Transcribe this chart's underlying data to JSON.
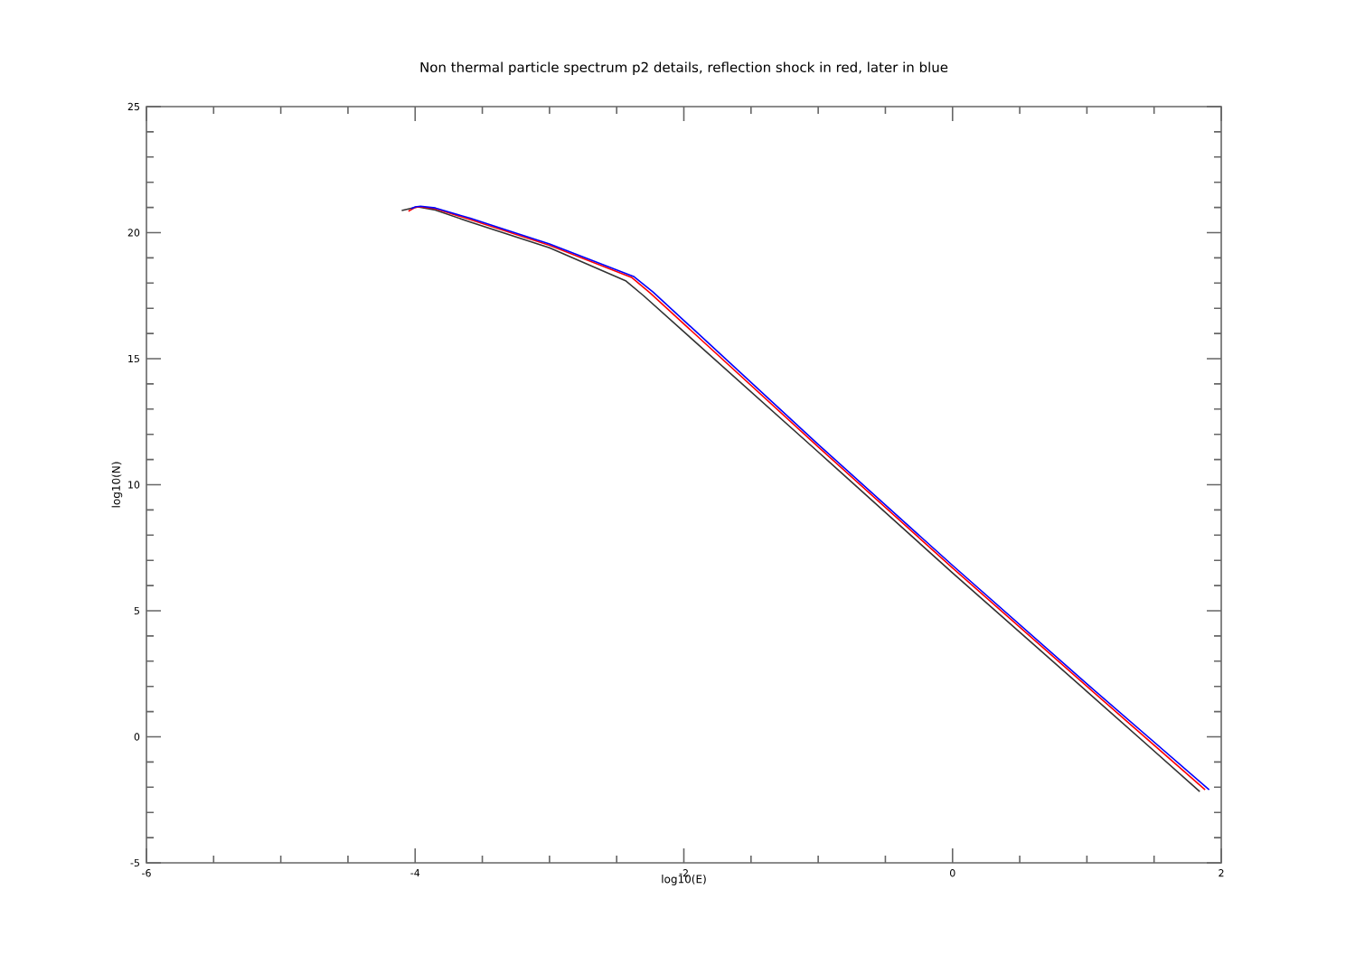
{
  "chart_data": {
    "type": "line",
    "title": "Non thermal particle spectrum p2 details, reflection shock in red, later in blue",
    "xlabel": "log10(E)",
    "ylabel": "log10(N)",
    "xlim": [
      -6,
      2
    ],
    "ylim": [
      -5,
      25
    ],
    "xticks": [
      -6,
      {
        "value": -5.5,
        "label": null
      },
      {
        "value": -5,
        "label": null
      },
      {
        "value": -4.5,
        "label": null
      },
      -4,
      {
        "value": -3.5,
        "label": null
      },
      {
        "value": -3,
        "label": null
      },
      {
        "value": -2.5,
        "label": null
      },
      -2,
      {
        "value": -1.5,
        "label": null
      },
      {
        "value": -1,
        "label": null
      },
      {
        "value": -0.5,
        "label": null
      },
      0,
      {
        "value": 0.5,
        "label": null
      },
      {
        "value": 1,
        "label": null
      },
      {
        "value": 1.5,
        "label": null
      },
      2
    ],
    "yticks": [
      -5,
      {
        "value": -4,
        "label": null
      },
      {
        "value": -3,
        "label": null
      },
      {
        "value": -2,
        "label": null
      },
      {
        "value": -1,
        "label": null
      },
      0,
      {
        "value": 1,
        "label": null
      },
      {
        "value": 2,
        "label": null
      },
      {
        "value": 3,
        "label": null
      },
      {
        "value": 4,
        "label": null
      },
      5,
      {
        "value": 6,
        "label": null
      },
      {
        "value": 7,
        "label": null
      },
      {
        "value": 8,
        "label": null
      },
      {
        "value": 9,
        "label": null
      },
      10,
      {
        "value": 11,
        "label": null
      },
      {
        "value": 12,
        "label": null
      },
      {
        "value": 13,
        "label": null
      },
      {
        "value": 14,
        "label": null
      },
      15,
      {
        "value": 16,
        "label": null
      },
      {
        "value": 17,
        "label": null
      },
      {
        "value": 18,
        "label": null
      },
      {
        "value": 19,
        "label": null
      },
      20,
      {
        "value": 21,
        "label": null
      },
      {
        "value": 22,
        "label": null
      },
      {
        "value": 23,
        "label": null
      },
      {
        "value": 24,
        "label": null
      },
      25
    ],
    "grid": false,
    "series": [
      {
        "color": "#333333",
        "x": [
          -4.1,
          -4.02,
          -3.98,
          -3.85,
          -3.59,
          -3.0,
          -2.43,
          -2.3,
          -1.0,
          0.0,
          1.0,
          1.84
        ],
        "values": [
          20.88,
          20.98,
          21.02,
          20.9,
          20.42,
          19.4,
          18.08,
          17.5,
          11.3,
          6.5,
          1.8,
          -2.17
        ]
      },
      {
        "color": "#ff0000",
        "x": [
          -4.05,
          -4.0,
          -3.97,
          -3.85,
          -3.59,
          -3.0,
          -2.39,
          -2.25,
          -1.0,
          0.0,
          1.0,
          1.88
        ],
        "values": [
          20.85,
          21.0,
          21.03,
          20.95,
          20.52,
          19.5,
          18.23,
          17.6,
          11.5,
          6.7,
          2.0,
          -2.1
        ]
      },
      {
        "color": "#0000ff",
        "x": [
          -4.03,
          -4.0,
          -3.96,
          -3.85,
          -3.59,
          -3.0,
          -2.37,
          -2.23,
          -1.0,
          0.0,
          1.0,
          1.91
        ],
        "values": [
          20.95,
          21.02,
          21.05,
          20.98,
          20.57,
          19.55,
          18.25,
          17.65,
          11.6,
          6.8,
          2.1,
          -2.1
        ]
      }
    ]
  }
}
